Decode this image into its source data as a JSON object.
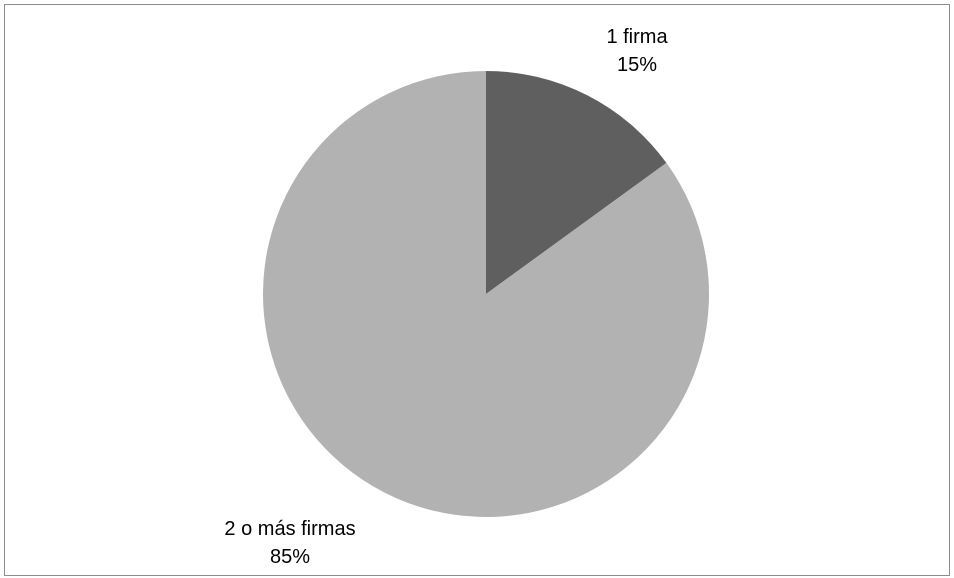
{
  "chart_data": {
    "type": "pie",
    "title": "",
    "slices": [
      {
        "label": "1 firma",
        "percent_label": "15%",
        "value": 15,
        "color": "#5f5f5f"
      },
      {
        "label": "2 o más firmas",
        "percent_label": "85%",
        "value": 85,
        "color": "#b2b2b2"
      }
    ],
    "start_angle_deg": 0,
    "direction": "clockwise",
    "legend": "none"
  }
}
